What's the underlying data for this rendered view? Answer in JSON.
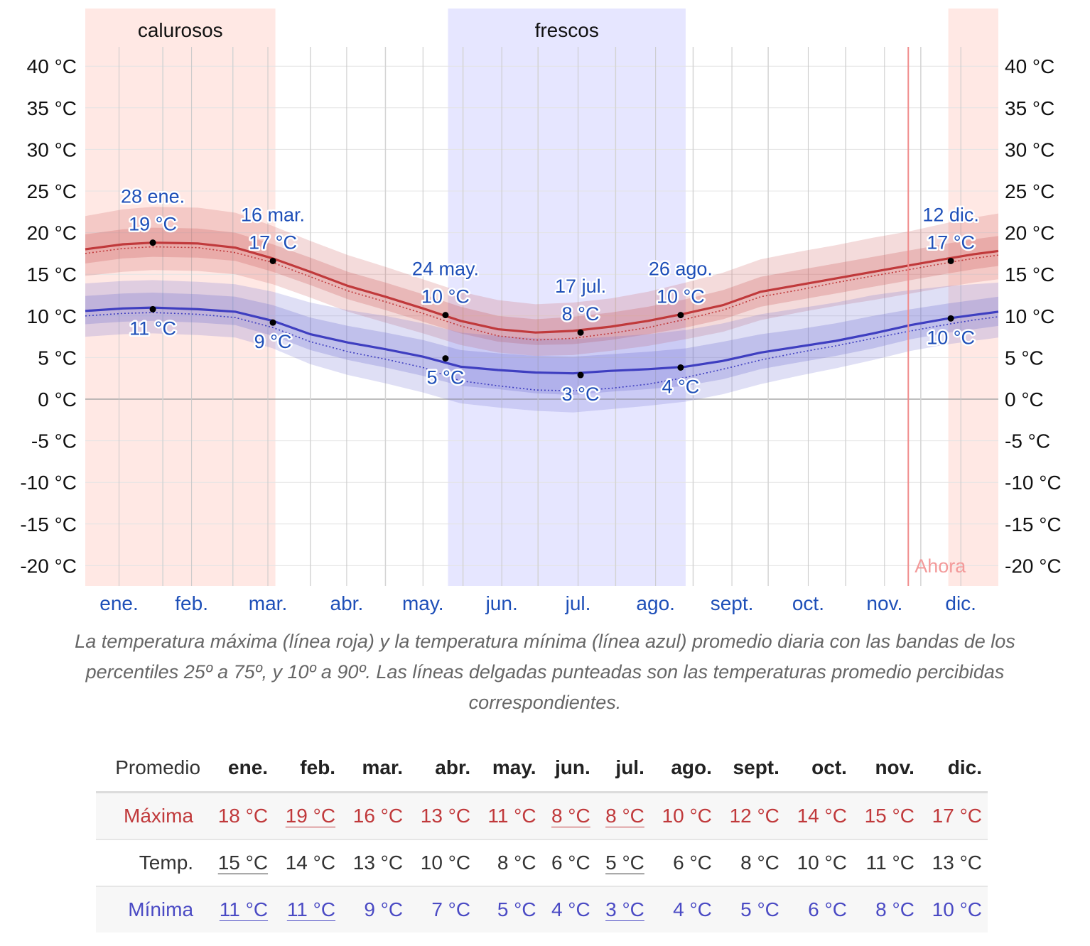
{
  "chart_data": {
    "type": "line",
    "title": "",
    "xlabel": "",
    "ylabel": "",
    "ylim": [
      -22,
      45
    ],
    "y_ticks": [
      "40 °C",
      "35 °C",
      "30 °C",
      "25 °C",
      "20 °C",
      "15 °C",
      "10 °C",
      "5 °C",
      "0 °C",
      "-5 °C",
      "-10 °C",
      "-15 °C",
      "-20 °C"
    ],
    "y_tick_values": [
      40,
      35,
      30,
      25,
      20,
      15,
      10,
      5,
      0,
      -5,
      -10,
      -15,
      -20
    ],
    "month_labels": [
      "ene.",
      "feb.",
      "mar.",
      "abr.",
      "may.",
      "jun.",
      "jul.",
      "ago.",
      "sept.",
      "oct.",
      "nov.",
      "dic."
    ],
    "month_label_days": [
      13.5,
      42.5,
      73,
      104.5,
      135,
      166.5,
      197,
      228,
      258.5,
      289,
      319.5,
      350
    ],
    "month_start_days": [
      0,
      31,
      59,
      90,
      120,
      151,
      181,
      212,
      243,
      273,
      304,
      334
    ],
    "x_range_days": [
      0,
      365
    ],
    "seasons": [
      {
        "label": "calurosos",
        "start_day": 0,
        "end_day": 76,
        "color": "#ffe8e4"
      },
      {
        "label": "frescos",
        "start_day": 145,
        "end_day": 240,
        "color": "#e6e6ff"
      },
      {
        "label": "",
        "start_day": 345,
        "end_day": 365,
        "color": "#ffe8e4"
      }
    ],
    "now_marker": {
      "label": "Ahora",
      "day": 329
    },
    "x": [
      0,
      15,
      27,
      45,
      60,
      75,
      90,
      105,
      120,
      135,
      150,
      165,
      180,
      195,
      210,
      225,
      240,
      255,
      270,
      285,
      300,
      315,
      330,
      345,
      355,
      365
    ],
    "series": [
      {
        "name": "",
        "role": "high",
        "color": "#c0393b",
        "values": [
          18.0,
          18.6,
          18.8,
          18.7,
          18.2,
          16.9,
          15.3,
          13.6,
          12.3,
          10.9,
          9.4,
          8.4,
          8.0,
          8.2,
          8.7,
          9.4,
          10.3,
          11.3,
          12.9,
          13.7,
          14.5,
          15.3,
          16.1,
          16.9,
          17.4,
          17.8
        ],
        "band_p25_p75": [
          [
            16.3,
            19.8
          ],
          [
            16.9,
            20.4
          ],
          [
            17.1,
            20.6
          ],
          [
            17.0,
            20.5
          ],
          [
            16.6,
            20.0
          ],
          [
            15.3,
            18.6
          ],
          [
            13.7,
            17.0
          ],
          [
            12.0,
            15.3
          ],
          [
            10.7,
            14.0
          ],
          [
            9.3,
            12.6
          ],
          [
            7.9,
            11.1
          ],
          [
            6.9,
            10.0
          ],
          [
            6.5,
            9.6
          ],
          [
            6.6,
            9.9
          ],
          [
            7.1,
            10.4
          ],
          [
            7.8,
            11.1
          ],
          [
            8.6,
            12.0
          ],
          [
            9.6,
            13.1
          ],
          [
            11.1,
            14.7
          ],
          [
            11.9,
            15.5
          ],
          [
            12.7,
            16.3
          ],
          [
            13.5,
            17.1
          ],
          [
            14.3,
            17.9
          ],
          [
            15.1,
            18.7
          ],
          [
            15.6,
            19.2
          ],
          [
            16.0,
            19.6
          ]
        ],
        "band_p10_p90": [
          [
            14.8,
            22.0
          ],
          [
            15.3,
            22.8
          ],
          [
            15.5,
            23.1
          ],
          [
            15.4,
            23.0
          ],
          [
            15.0,
            22.4
          ],
          [
            13.8,
            20.8
          ],
          [
            12.2,
            19.0
          ],
          [
            10.5,
            17.3
          ],
          [
            9.2,
            15.9
          ],
          [
            7.9,
            14.4
          ],
          [
            6.5,
            12.9
          ],
          [
            5.6,
            11.9
          ],
          [
            5.2,
            11.4
          ],
          [
            5.3,
            11.6
          ],
          [
            5.8,
            12.1
          ],
          [
            6.4,
            12.9
          ],
          [
            7.2,
            14.0
          ],
          [
            8.1,
            15.2
          ],
          [
            9.5,
            16.8
          ],
          [
            10.4,
            17.7
          ],
          [
            11.2,
            18.5
          ],
          [
            11.9,
            19.4
          ],
          [
            12.7,
            20.2
          ],
          [
            13.5,
            21.2
          ],
          [
            14.0,
            21.8
          ],
          [
            14.4,
            22.3
          ]
        ],
        "feels_like": [
          17.5,
          18.1,
          18.3,
          18.2,
          17.6,
          16.4,
          14.7,
          13.0,
          11.7,
          10.3,
          8.8,
          7.6,
          7.1,
          7.3,
          7.9,
          8.6,
          9.6,
          10.7,
          12.3,
          13.1,
          14.0,
          14.8,
          15.6,
          16.4,
          16.9,
          17.3
        ]
      },
      {
        "name": "",
        "role": "low",
        "color": "#3e3ec0",
        "values": [
          10.6,
          10.9,
          11.0,
          10.8,
          10.5,
          9.4,
          7.8,
          6.8,
          6.0,
          5.1,
          3.9,
          3.5,
          3.2,
          3.1,
          3.4,
          3.6,
          3.9,
          4.6,
          5.6,
          6.3,
          7.0,
          7.9,
          8.9,
          9.7,
          10.1,
          10.5
        ],
        "band_p25_p75": [
          [
            9.0,
            12.4
          ],
          [
            9.3,
            12.7
          ],
          [
            9.4,
            12.8
          ],
          [
            9.2,
            12.6
          ],
          [
            8.9,
            12.3
          ],
          [
            7.6,
            11.3
          ],
          [
            5.9,
            9.8
          ],
          [
            4.7,
            8.8
          ],
          [
            3.8,
            8.0
          ],
          [
            2.8,
            7.1
          ],
          [
            1.6,
            5.9
          ],
          [
            1.2,
            5.5
          ],
          [
            0.7,
            5.2
          ],
          [
            0.5,
            5.1
          ],
          [
            0.9,
            5.4
          ],
          [
            1.2,
            5.7
          ],
          [
            1.6,
            6.1
          ],
          [
            2.4,
            6.9
          ],
          [
            3.6,
            7.8
          ],
          [
            4.4,
            8.4
          ],
          [
            5.2,
            9.1
          ],
          [
            6.1,
            10.0
          ],
          [
            7.2,
            10.8
          ],
          [
            8.0,
            11.5
          ],
          [
            8.4,
            11.9
          ],
          [
            8.8,
            12.3
          ]
        ],
        "band_p10_p90": [
          [
            7.5,
            13.9
          ],
          [
            7.8,
            14.2
          ],
          [
            7.9,
            14.3
          ],
          [
            7.7,
            14.1
          ],
          [
            7.4,
            13.8
          ],
          [
            6.1,
            12.9
          ],
          [
            4.2,
            11.6
          ],
          [
            2.9,
            10.7
          ],
          [
            1.9,
            10.0
          ],
          [
            0.8,
            9.1
          ],
          [
            -0.5,
            8.0
          ],
          [
            -1.0,
            7.6
          ],
          [
            -1.4,
            7.3
          ],
          [
            -1.6,
            7.2
          ],
          [
            -1.2,
            7.5
          ],
          [
            -0.8,
            7.8
          ],
          [
            -0.3,
            8.3
          ],
          [
            0.6,
            9.1
          ],
          [
            1.8,
            10.2
          ],
          [
            2.8,
            10.9
          ],
          [
            3.7,
            11.6
          ],
          [
            4.7,
            12.5
          ],
          [
            5.8,
            13.1
          ],
          [
            6.6,
            13.6
          ],
          [
            7.0,
            13.8
          ],
          [
            7.4,
            14.0
          ]
        ],
        "feels_like": [
          10.0,
          10.3,
          10.4,
          10.2,
          9.8,
          8.6,
          6.9,
          5.7,
          4.8,
          3.8,
          2.2,
          1.6,
          1.1,
          1.0,
          1.3,
          1.8,
          2.6,
          3.6,
          4.7,
          5.6,
          6.4,
          7.3,
          8.2,
          9.0,
          9.5,
          9.9
        ]
      }
    ],
    "annotations": [
      {
        "day": 27,
        "value": 18.8,
        "date": "28 ene.",
        "temp": "19 °C",
        "position": "above"
      },
      {
        "day": 75,
        "value": 16.6,
        "date": "16 mar.",
        "temp": "17 °C",
        "position": "above"
      },
      {
        "day": 144,
        "value": 10.1,
        "date": "24 may.",
        "temp": "10 °C",
        "position": "above"
      },
      {
        "day": 198,
        "value": 8.0,
        "date": "17 jul.",
        "temp": "8 °C",
        "position": "above"
      },
      {
        "day": 238,
        "value": 10.1,
        "date": "26 ago.",
        "temp": "10 °C",
        "position": "above"
      },
      {
        "day": 346,
        "value": 16.6,
        "date": "12 dic.",
        "temp": "17 °C",
        "position": "above"
      },
      {
        "day": 27,
        "value": 10.8,
        "date": "",
        "temp": "11 °C",
        "position": "below"
      },
      {
        "day": 75,
        "value": 9.2,
        "date": "",
        "temp": "9 °C",
        "position": "below"
      },
      {
        "day": 144,
        "value": 4.9,
        "date": "",
        "temp": "5 °C",
        "position": "below"
      },
      {
        "day": 198,
        "value": 2.9,
        "date": "",
        "temp": "3 °C",
        "position": "below"
      },
      {
        "day": 238,
        "value": 3.8,
        "date": "",
        "temp": "4 °C",
        "position": "below"
      },
      {
        "day": 346,
        "value": 9.7,
        "date": "",
        "temp": "10 °C",
        "position": "below"
      }
    ]
  },
  "caption": "La temperatura máxima (línea roja) y la temperatura mínima (línea azul) promedio diaria con las bandas de los percentiles 25º a 75º, y 10º a 90º. Las líneas delgadas punteadas son las temperaturas promedio percibidas correspondientes.",
  "table": {
    "corner": "Promedio",
    "months": [
      "ene.",
      "feb.",
      "mar.",
      "abr.",
      "may.",
      "jun.",
      "jul.",
      "ago.",
      "sept.",
      "oct.",
      "nov.",
      "dic."
    ],
    "rows": [
      {
        "label": "Máxima",
        "class": "max",
        "values": [
          "18 °C",
          "19 °C",
          "16 °C",
          "13 °C",
          "11 °C",
          "8 °C",
          "8 °C",
          "10 °C",
          "12 °C",
          "14 °C",
          "15 °C",
          "17 °C"
        ],
        "extremes": [
          false,
          true,
          false,
          false,
          false,
          true,
          true,
          false,
          false,
          false,
          false,
          false
        ]
      },
      {
        "label": "Temp.",
        "class": "avg",
        "values": [
          "15 °C",
          "14 °C",
          "13 °C",
          "10 °C",
          "8 °C",
          "6 °C",
          "5 °C",
          "6 °C",
          "8 °C",
          "10 °C",
          "11 °C",
          "13 °C"
        ],
        "extremes": [
          true,
          false,
          false,
          false,
          false,
          false,
          true,
          false,
          false,
          false,
          false,
          false
        ]
      },
      {
        "label": "Mínima",
        "class": "min",
        "values": [
          "11 °C",
          "11 °C",
          "9 °C",
          "7 °C",
          "5 °C",
          "4 °C",
          "3 °C",
          "4 °C",
          "5 °C",
          "6 °C",
          "8 °C",
          "10 °C"
        ],
        "extremes": [
          true,
          true,
          false,
          false,
          false,
          false,
          true,
          false,
          false,
          false,
          false,
          false
        ]
      }
    ]
  }
}
